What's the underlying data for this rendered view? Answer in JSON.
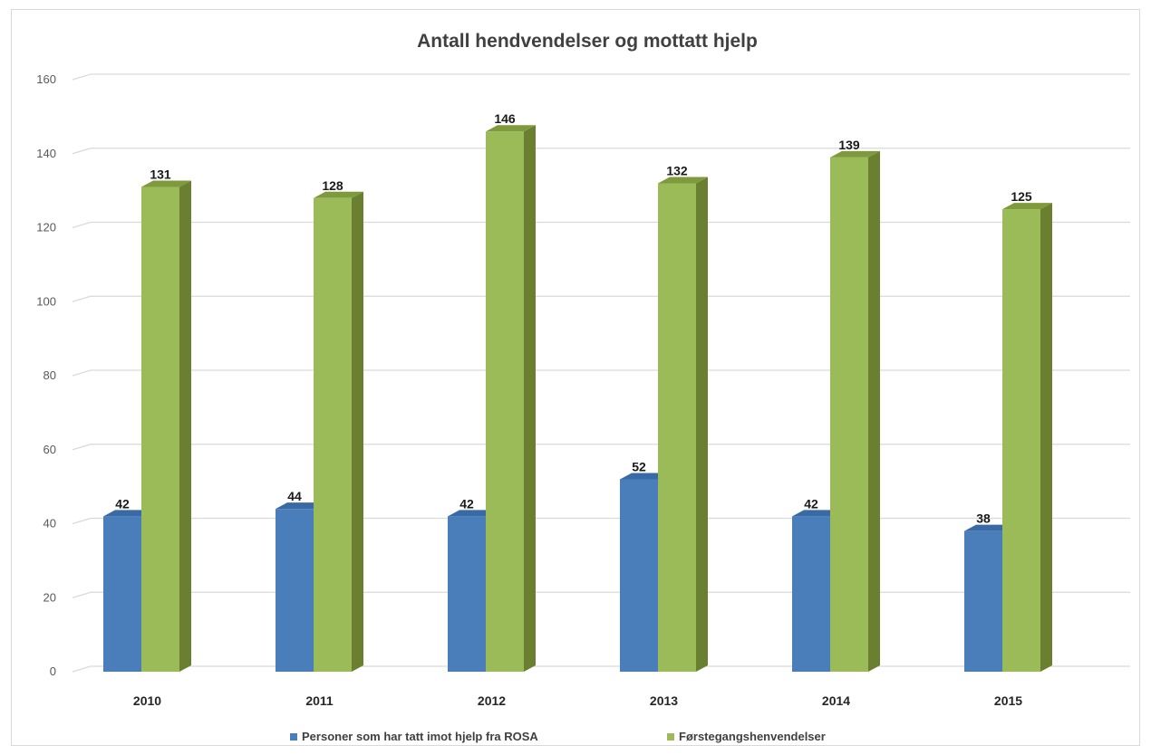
{
  "chart_data": {
    "type": "bar",
    "title": "Antall hendvendelser og mottatt hjelp",
    "categories": [
      "2010",
      "2011",
      "2012",
      "2013",
      "2014",
      "2015"
    ],
    "series": [
      {
        "name": "Personer som har tatt imot hjelp fra ROSA",
        "values": [
          42,
          44,
          42,
          52,
          42,
          38
        ],
        "color": "#4a7ebb",
        "side_color": "#2f5b8f",
        "top_color": "#3a6aa5"
      },
      {
        "name": "Førstegangshenvendelser",
        "values": [
          131,
          128,
          146,
          132,
          139,
          125
        ],
        "color": "#9bbb59",
        "side_color": "#6b7f30",
        "top_color": "#7f9a3c"
      }
    ],
    "yticks": [
      0,
      20,
      40,
      60,
      80,
      100,
      120,
      140,
      160
    ],
    "ylim": [
      0,
      160
    ],
    "grid": true,
    "legend_position": "bottom",
    "data_labels": true,
    "style": "3d-column"
  }
}
